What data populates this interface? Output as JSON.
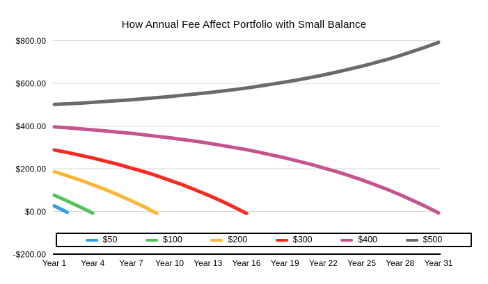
{
  "chart_data": {
    "type": "line",
    "title": "How Annual Fee Affect Portfolio with Small Balance",
    "xlabel": "",
    "ylabel": "",
    "xlim": [
      1,
      31
    ],
    "ylim": [
      -200,
      800
    ],
    "grid": "horizontal",
    "grid_color": "#d9d9d9",
    "axis_color": "#000000",
    "legend_position": "bottom-inside",
    "y_ticks": [
      {
        "value": 800,
        "label": "$800.00"
      },
      {
        "value": 600,
        "label": "$600.00"
      },
      {
        "value": 400,
        "label": "$400.00"
      },
      {
        "value": 200,
        "label": "$200.00"
      },
      {
        "value": 0,
        "label": "$0.00"
      },
      {
        "value": -200,
        "label": "-$200.00"
      }
    ],
    "x_ticks": [
      {
        "value": 1,
        "label": "Year 1"
      },
      {
        "value": 4,
        "label": "Year 4"
      },
      {
        "value": 7,
        "label": "Year 7"
      },
      {
        "value": 10,
        "label": "Year 10"
      },
      {
        "value": 13,
        "label": "Year 13"
      },
      {
        "value": 16,
        "label": "Year 16"
      },
      {
        "value": 19,
        "label": "Year 19"
      },
      {
        "value": 22,
        "label": "Year 22"
      },
      {
        "value": 25,
        "label": "Year 25"
      },
      {
        "value": 28,
        "label": "Year 28"
      },
      {
        "value": 31,
        "label": "Year 31"
      }
    ],
    "series": [
      {
        "name": "$50",
        "color": "#2b9fe9",
        "start_year": 1,
        "step": 1,
        "values": [
          26,
          -4
        ]
      },
      {
        "name": "$100",
        "color": "#53c257",
        "start_year": 1,
        "step": 1,
        "values": [
          76,
          49,
          21,
          -8
        ]
      },
      {
        "name": "$200",
        "color": "#fbb632",
        "start_year": 1,
        "step": 1,
        "values": [
          186,
          167,
          147,
          125,
          102,
          77,
          50,
          22,
          -9
        ]
      },
      {
        "name": "$300",
        "color": "#fc281f",
        "start_year": 1,
        "step": 1,
        "values": [
          288,
          276,
          263,
          250,
          235,
          220,
          203,
          186,
          167,
          146,
          125,
          101,
          76,
          50,
          21,
          -9
        ]
      },
      {
        "name": "$400",
        "color": "#c5538d",
        "start_year": 1,
        "step": 1,
        "values": [
          396,
          392,
          387,
          382,
          377,
          371,
          366,
          359,
          352,
          345,
          337,
          329,
          320,
          310,
          300,
          289,
          277,
          264,
          251,
          236,
          221,
          204,
          187,
          168,
          148,
          126,
          103,
          78,
          51,
          23,
          -7
        ]
      },
      {
        "name": "$500",
        "color": "#6a6a6a",
        "start_year": 1,
        "step": 1,
        "values": [
          501,
          504,
          507,
          511,
          515,
          519,
          523,
          528,
          533,
          538,
          544,
          550,
          556,
          563,
          570,
          578,
          587,
          596,
          606,
          616,
          627,
          639,
          652,
          666,
          680,
          696,
          712,
          730,
          750,
          770,
          792
        ]
      }
    ]
  }
}
